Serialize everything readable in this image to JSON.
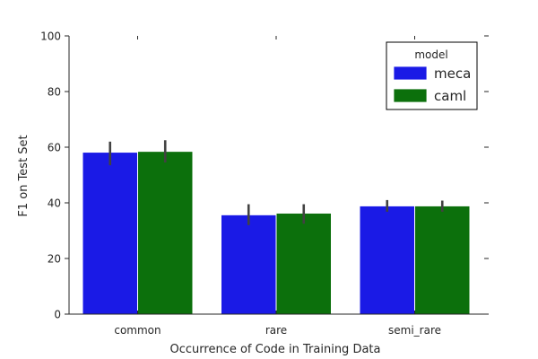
{
  "chart_data": {
    "type": "bar",
    "title": "",
    "xlabel": "Occurrence of Code in Training Data",
    "ylabel": "F1 on Test Set",
    "categories": [
      "common",
      "rare",
      "semi_rare"
    ],
    "ylim": [
      0,
      100
    ],
    "yticks": [
      0,
      20,
      40,
      60,
      80,
      100
    ],
    "grid": false,
    "legend": {
      "title": "model",
      "position": "top-right"
    },
    "series": [
      {
        "name": "meca",
        "color": "#1a1ae6",
        "values": [
          58.2,
          35.7,
          38.9
        ],
        "ci_low": [
          53.5,
          32.0,
          36.8
        ],
        "ci_high": [
          62.0,
          39.5,
          41.0
        ]
      },
      {
        "name": "caml",
        "color": "#0c700c",
        "values": [
          58.5,
          36.3,
          38.9
        ],
        "ci_low": [
          54.5,
          32.5,
          36.8
        ],
        "ci_high": [
          62.5,
          39.5,
          40.8
        ]
      }
    ]
  }
}
